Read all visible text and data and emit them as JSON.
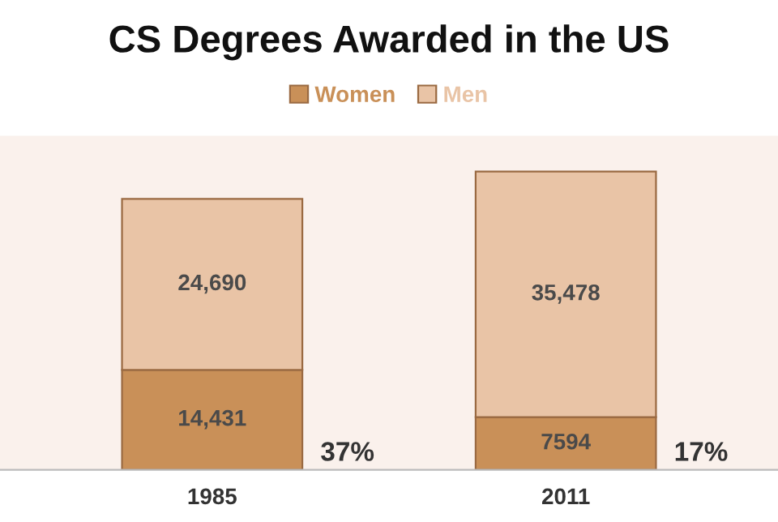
{
  "chart_data": {
    "type": "bar",
    "title": "CS Degrees Awarded in the US",
    "categories": [
      "1985",
      "2011"
    ],
    "stacked": true,
    "series": [
      {
        "name": "Women",
        "color": "#c99058",
        "values": [
          14431,
          7594
        ],
        "value_labels": [
          "14,431",
          "7594"
        ]
      },
      {
        "name": "Men",
        "color": "#e9c4a6",
        "values": [
          24690,
          35478
        ],
        "value_labels": [
          "24,690",
          "35,478"
        ]
      }
    ],
    "annotations": [
      "37%",
      "17%"
    ],
    "legend": "top",
    "grid": false
  }
}
